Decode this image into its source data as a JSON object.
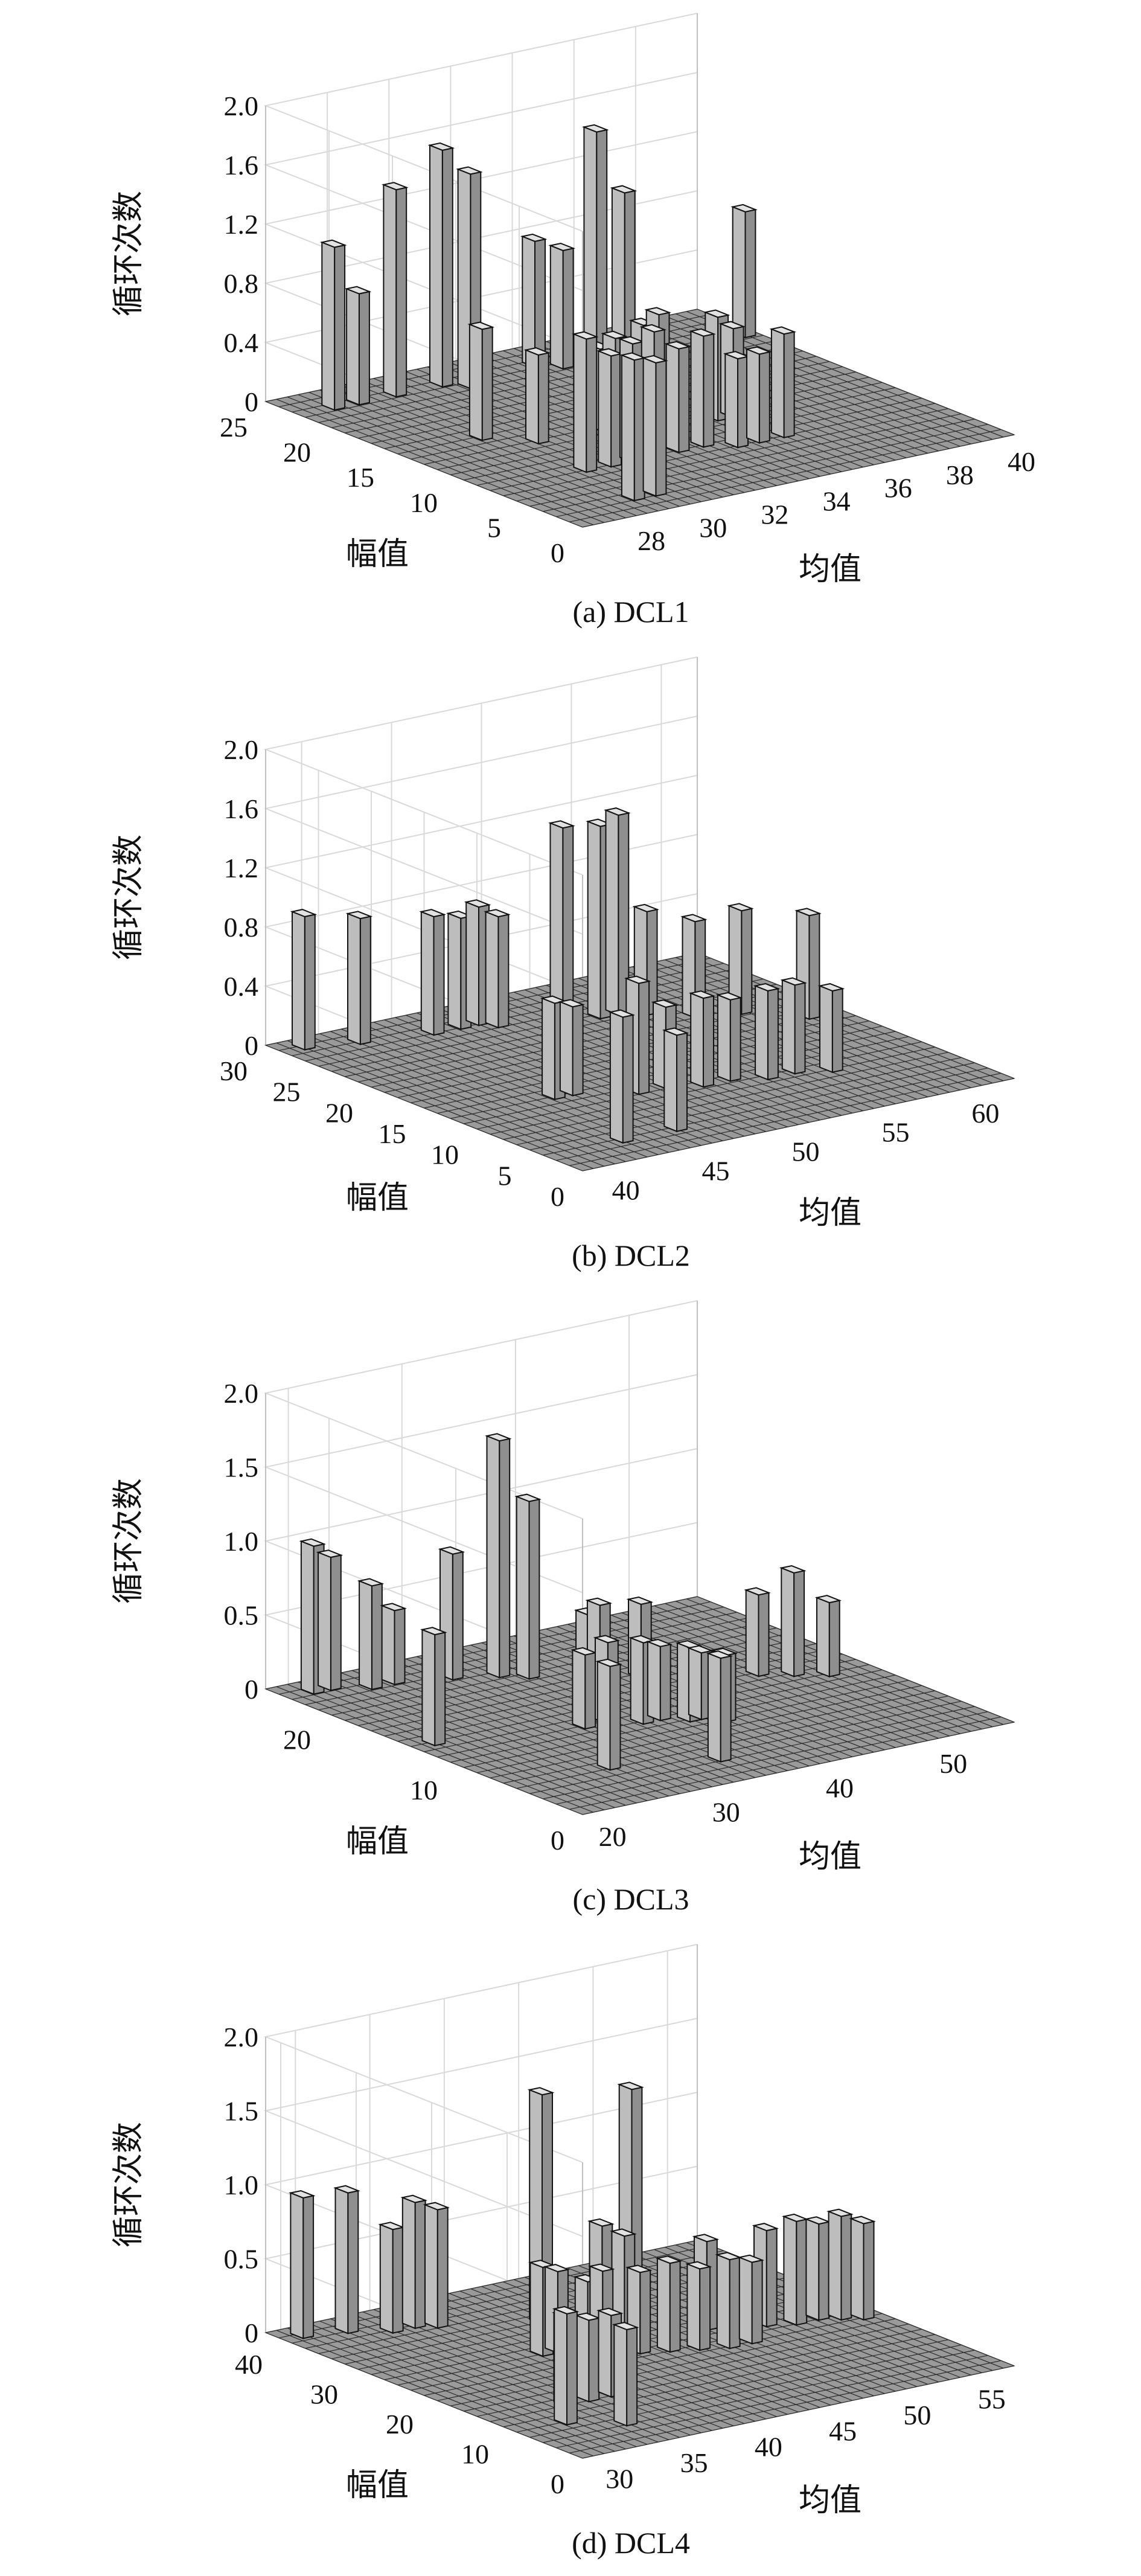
{
  "chart_data": [
    {
      "type": "bar",
      "caption": "(a) DCL1",
      "zlabel": "循环次数",
      "ylabel": "幅值",
      "xlabel": "均值",
      "zlim": [
        0,
        2.0
      ],
      "z_ticks": [
        "0",
        "0.4",
        "0.8",
        "1.2",
        "1.6",
        "2.0"
      ],
      "xlim": [
        26,
        40
      ],
      "x_ticks": [
        "28",
        "30",
        "32",
        "34",
        "36",
        "38",
        "40"
      ],
      "ylim": [
        0,
        25
      ],
      "y_ticks": [
        "0",
        "5",
        "10",
        "15",
        "20",
        "25"
      ],
      "bars": [
        {
          "x": 27.0,
          "y": 22,
          "z": 1.1
        },
        {
          "x": 27.8,
          "y": 22,
          "z": 0.75
        },
        {
          "x": 29.0,
          "y": 22,
          "z": 1.4
        },
        {
          "x": 30.5,
          "y": 22,
          "z": 1.6
        },
        {
          "x": 31.0,
          "y": 21,
          "z": 1.45
        },
        {
          "x": 33.5,
          "y": 22,
          "z": 0.85
        },
        {
          "x": 34.0,
          "y": 21,
          "z": 0.8
        },
        {
          "x": 35.5,
          "y": 22,
          "z": 1.5
        },
        {
          "x": 36.0,
          "y": 21,
          "z": 1.1
        },
        {
          "x": 39.5,
          "y": 20,
          "z": 0.85
        },
        {
          "x": 28.5,
          "y": 14,
          "z": 0.75
        },
        {
          "x": 29.5,
          "y": 12,
          "z": 0.6
        },
        {
          "x": 31.5,
          "y": 12,
          "z": 0.55
        },
        {
          "x": 32.0,
          "y": 12,
          "z": 0.6
        },
        {
          "x": 32.5,
          "y": 11,
          "z": 0.7
        },
        {
          "x": 33.0,
          "y": 11,
          "z": 0.75
        },
        {
          "x": 34.5,
          "y": 10,
          "z": 0.7
        },
        {
          "x": 35.0,
          "y": 10,
          "z": 0.6
        },
        {
          "x": 29.0,
          "y": 7,
          "z": 0.9
        },
        {
          "x": 29.8,
          "y": 7,
          "z": 0.75
        },
        {
          "x": 30.5,
          "y": 7,
          "z": 0.8
        },
        {
          "x": 31.2,
          "y": 7,
          "z": 0.85
        },
        {
          "x": 32.0,
          "y": 7,
          "z": 0.7
        },
        {
          "x": 32.8,
          "y": 7,
          "z": 0.75
        },
        {
          "x": 33.5,
          "y": 6,
          "z": 0.6
        },
        {
          "x": 34.2,
          "y": 6,
          "z": 0.6
        },
        {
          "x": 35.0,
          "y": 6,
          "z": 0.7
        },
        {
          "x": 28.5,
          "y": 2,
          "z": 0.95
        },
        {
          "x": 29.2,
          "y": 2,
          "z": 0.9
        }
      ]
    },
    {
      "type": "bar",
      "caption": "(b) DCL2",
      "zlabel": "循环次数",
      "ylabel": "幅值",
      "xlabel": "均值",
      "zlim": [
        0,
        2.0
      ],
      "z_ticks": [
        "0",
        "0.4",
        "0.8",
        "1.2",
        "1.6",
        "2.0"
      ],
      "xlim": [
        38,
        62
      ],
      "x_ticks": [
        "40",
        "45",
        "50",
        "55",
        "60"
      ],
      "ylim": [
        0,
        30
      ],
      "y_ticks": [
        "0",
        "5",
        "10",
        "15",
        "20",
        "25",
        "30"
      ],
      "bars": [
        {
          "x": 39.0,
          "y": 28,
          "z": 0.9
        },
        {
          "x": 41.5,
          "y": 27,
          "z": 0.85
        },
        {
          "x": 45.0,
          "y": 26,
          "z": 0.8
        },
        {
          "x": 46.5,
          "y": 26,
          "z": 0.75
        },
        {
          "x": 47.5,
          "y": 26,
          "z": 0.8
        },
        {
          "x": 48.0,
          "y": 25,
          "z": 0.75
        },
        {
          "x": 51.0,
          "y": 24,
          "z": 1.3
        },
        {
          "x": 52.5,
          "y": 23,
          "z": 1.3
        },
        {
          "x": 53.5,
          "y": 23,
          "z": 1.35
        },
        {
          "x": 54.5,
          "y": 22,
          "z": 0.7
        },
        {
          "x": 56.0,
          "y": 20,
          "z": 0.65
        },
        {
          "x": 58.0,
          "y": 19,
          "z": 0.7
        },
        {
          "x": 60.0,
          "y": 16,
          "z": 0.7
        },
        {
          "x": 43.5,
          "y": 12,
          "z": 0.65
        },
        {
          "x": 44.5,
          "y": 12,
          "z": 0.6
        },
        {
          "x": 47.0,
          "y": 10,
          "z": 0.75
        },
        {
          "x": 48.5,
          "y": 10,
          "z": 0.55
        },
        {
          "x": 50.0,
          "y": 9,
          "z": 0.6
        },
        {
          "x": 51.5,
          "y": 9,
          "z": 0.55
        },
        {
          "x": 53.0,
          "y": 8,
          "z": 0.6
        },
        {
          "x": 54.5,
          "y": 8,
          "z": 0.6
        },
        {
          "x": 56.0,
          "y": 7,
          "z": 0.55
        },
        {
          "x": 42.0,
          "y": 3,
          "z": 0.85
        },
        {
          "x": 45.0,
          "y": 3,
          "z": 0.65
        }
      ]
    },
    {
      "type": "bar",
      "caption": "(c) DCL3",
      "zlabel": "循环次数",
      "ylabel": "幅值",
      "xlabel": "均值",
      "zlim": [
        0,
        2.0
      ],
      "z_ticks": [
        "0",
        "0.5",
        "1.0",
        "1.5",
        "2.0"
      ],
      "xlim": [
        18,
        56
      ],
      "x_ticks": [
        "20",
        "30",
        "40",
        "50"
      ],
      "ylim": [
        0,
        25
      ],
      "y_ticks": [
        "0",
        "10",
        "20"
      ],
      "bars": [
        {
          "x": 20.0,
          "y": 23,
          "z": 1.0
        },
        {
          "x": 21.5,
          "y": 23,
          "z": 0.9
        },
        {
          "x": 24.0,
          "y": 22,
          "z": 0.7
        },
        {
          "x": 26.0,
          "y": 22,
          "z": 0.5
        },
        {
          "x": 30.0,
          "y": 21,
          "z": 0.85
        },
        {
          "x": 33.0,
          "y": 20,
          "z": 1.6
        },
        {
          "x": 34.5,
          "y": 19,
          "z": 1.2
        },
        {
          "x": 37.5,
          "y": 17,
          "z": 0.45
        },
        {
          "x": 38.5,
          "y": 17,
          "z": 0.5
        },
        {
          "x": 41.0,
          "y": 16,
          "z": 0.5
        },
        {
          "x": 48.0,
          "y": 13,
          "z": 0.55
        },
        {
          "x": 50.0,
          "y": 12,
          "z": 0.7
        },
        {
          "x": 52.0,
          "y": 11,
          "z": 0.5
        },
        {
          "x": 19.5,
          "y": 13,
          "z": 0.75
        },
        {
          "x": 30.5,
          "y": 11,
          "z": 0.5
        },
        {
          "x": 32.5,
          "y": 11,
          "z": 0.55
        },
        {
          "x": 34.5,
          "y": 10,
          "z": 0.55
        },
        {
          "x": 36.0,
          "y": 10,
          "z": 0.5
        },
        {
          "x": 37.5,
          "y": 9,
          "z": 0.5
        },
        {
          "x": 38.5,
          "y": 9,
          "z": 0.45
        },
        {
          "x": 39.5,
          "y": 8,
          "z": 0.45
        },
        {
          "x": 26.0,
          "y": 5,
          "z": 0.7
        },
        {
          "x": 33.5,
          "y": 3,
          "z": 0.7
        }
      ]
    },
    {
      "type": "bar",
      "caption": "(d) DCL4",
      "zlabel": "循环次数",
      "ylabel": "幅值",
      "xlabel": "均值",
      "zlim": [
        0,
        2.0
      ],
      "z_ticks": [
        "0",
        "0.5",
        "1.0",
        "1.5",
        "2.0"
      ],
      "xlim": [
        28,
        57
      ],
      "x_ticks": [
        "30",
        "35",
        "40",
        "45",
        "50",
        "55"
      ],
      "ylim": [
        0,
        42
      ],
      "y_ticks": [
        "0",
        "10",
        "20",
        "30",
        "40"
      ],
      "bars": [
        {
          "x": 29.0,
          "y": 39,
          "z": 0.95
        },
        {
          "x": 31.5,
          "y": 38,
          "z": 0.95
        },
        {
          "x": 33.5,
          "y": 36,
          "z": 0.7
        },
        {
          "x": 35.0,
          "y": 36,
          "z": 0.85
        },
        {
          "x": 36.0,
          "y": 35,
          "z": 0.8
        },
        {
          "x": 41.0,
          "y": 31,
          "z": 1.55
        },
        {
          "x": 45.5,
          "y": 28,
          "z": 1.55
        },
        {
          "x": 43.0,
          "y": 27,
          "z": 0.7
        },
        {
          "x": 44.5,
          "y": 27,
          "z": 0.6
        },
        {
          "x": 47.5,
          "y": 22,
          "z": 0.6
        },
        {
          "x": 50.5,
          "y": 20,
          "z": 0.65
        },
        {
          "x": 52.0,
          "y": 19,
          "z": 0.7
        },
        {
          "x": 53.5,
          "y": 19,
          "z": 0.65
        },
        {
          "x": 54.5,
          "y": 18,
          "z": 0.7
        },
        {
          "x": 55.5,
          "y": 17,
          "z": 0.65
        },
        {
          "x": 37.5,
          "y": 24,
          "z": 0.6
        },
        {
          "x": 38.5,
          "y": 24,
          "z": 0.55
        },
        {
          "x": 39.5,
          "y": 22,
          "z": 0.5
        },
        {
          "x": 40.5,
          "y": 22,
          "z": 0.55
        },
        {
          "x": 42.0,
          "y": 20,
          "z": 0.55
        },
        {
          "x": 43.5,
          "y": 19,
          "z": 0.6
        },
        {
          "x": 45.0,
          "y": 18,
          "z": 0.55
        },
        {
          "x": 46.5,
          "y": 17,
          "z": 0.6
        },
        {
          "x": 48.0,
          "y": 17,
          "z": 0.55
        },
        {
          "x": 33.0,
          "y": 12,
          "z": 0.6
        },
        {
          "x": 34.5,
          "y": 12,
          "z": 0.55
        },
        {
          "x": 36.0,
          "y": 12,
          "z": 0.55
        },
        {
          "x": 31.0,
          "y": 8,
          "z": 0.75
        },
        {
          "x": 33.5,
          "y": 5,
          "z": 0.65
        }
      ]
    }
  ]
}
